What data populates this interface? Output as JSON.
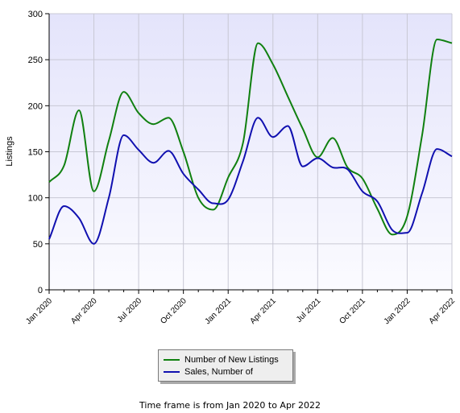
{
  "chart_data": {
    "type": "line",
    "ylabel": "Listings",
    "ylim": [
      0,
      300
    ],
    "yticks": [
      0,
      50,
      100,
      150,
      200,
      250,
      300
    ],
    "x": [
      "2020-01",
      "2020-02",
      "2020-03",
      "2020-04",
      "2020-05",
      "2020-06",
      "2020-07",
      "2020-08",
      "2020-09",
      "2020-10",
      "2020-11",
      "2020-12",
      "2021-01",
      "2021-02",
      "2021-03",
      "2021-04",
      "2021-05",
      "2021-06",
      "2021-07",
      "2021-08",
      "2021-09",
      "2021-10",
      "2021-11",
      "2021-12",
      "2022-01",
      "2022-02",
      "2022-03",
      "2022-04"
    ],
    "xtick_labels": [
      "Jan 2020",
      "Apr 2020",
      "Jul 2020",
      "Oct 2020",
      "Jan 2021",
      "Apr 2021",
      "Jul 2021",
      "Oct 2021",
      "Jan 2022",
      "Apr 2022"
    ],
    "grid": true,
    "legend_position": "bottom-center",
    "series": [
      {
        "name": "Number of New Listings",
        "color": "#108010",
        "values": [
          117,
          135,
          195,
          107,
          162,
          215,
          192,
          180,
          187,
          150,
          100,
          87,
          122,
          160,
          268,
          245,
          210,
          175,
          144,
          165,
          133,
          121,
          88,
          60,
          80,
          168,
          272,
          268
        ]
      },
      {
        "name": "Sales, Number of",
        "color": "#1010b0",
        "values": [
          55,
          91,
          78,
          50,
          100,
          168,
          152,
          138,
          151,
          126,
          109,
          94,
          98,
          140,
          187,
          166,
          178,
          134,
          143,
          133,
          131,
          107,
          96,
          65,
          62,
          105,
          153,
          145
        ]
      }
    ]
  },
  "footer_text": "Time frame is from Jan 2020 to Apr 2022"
}
